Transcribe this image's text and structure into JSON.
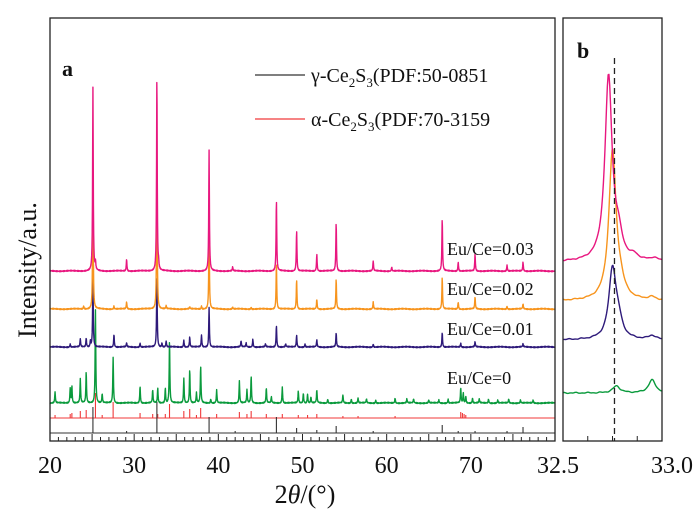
{
  "chart_data": [
    {
      "panel": "a",
      "type": "line",
      "ylabel": "Intensity/a.u.",
      "xlabel_prefix": "2",
      "xlabel_var": "θ",
      "xlabel_suffix": "/(°)",
      "xlim": [
        20,
        80
      ],
      "xticks": [
        "20",
        "30",
        "40",
        "50",
        "60",
        "70"
      ],
      "xtick_values": [
        20,
        30,
        40,
        50,
        60,
        70
      ],
      "legend": [
        {
          "symbol": "γ",
          "text": "-Ce",
          "sub1": "2",
          "mid": "S",
          "sub2": "3",
          "tail": "(PDF:50-0851",
          "color": "#333333"
        },
        {
          "symbol": "α",
          "text": "-Ce",
          "sub1": "2",
          "mid": "S",
          "sub2": "3",
          "tail": "(PDF:70-3159",
          "color": "#f0393a"
        }
      ],
      "legend_placement": "top-right",
      "series": [
        {
          "name": "Eu/Ce=0.03",
          "color": "#e8177f",
          "offset": 170,
          "peaks": [
            [
              25.1,
              183
            ],
            [
              32.7,
              198
            ],
            [
              38.9,
              121
            ],
            [
              46.9,
              72
            ],
            [
              49.3,
              41
            ],
            [
              29.1,
              12
            ],
            [
              41.7,
              4
            ],
            [
              51.7,
              17
            ],
            [
              54.0,
              49
            ],
            [
              58.4,
              10
            ],
            [
              60.6,
              4
            ],
            [
              66.6,
              53
            ],
            [
              68.5,
              9
            ],
            [
              70.5,
              17
            ],
            [
              74.3,
              6
            ],
            [
              76.2,
              9
            ],
            [
              25.4,
              8
            ],
            [
              32.9,
              6
            ]
          ]
        },
        {
          "name": "Eu/Ce=0.02",
          "color": "#f7941d",
          "offset": 132,
          "peaks": [
            [
              25.1,
              132
            ],
            [
              32.7,
              155
            ],
            [
              38.9,
              83
            ],
            [
              46.9,
              46
            ],
            [
              49.3,
              30
            ],
            [
              29.1,
              7
            ],
            [
              51.7,
              10
            ],
            [
              54.0,
              30
            ],
            [
              58.4,
              7
            ],
            [
              66.6,
              32
            ],
            [
              68.5,
              7
            ],
            [
              70.5,
              12
            ],
            [
              74.3,
              3
            ],
            [
              76.2,
              5
            ],
            [
              24.0,
              3
            ],
            [
              27.6,
              3
            ],
            [
              33.8,
              3
            ],
            [
              36.6,
              2
            ],
            [
              38.0,
              3
            ],
            [
              41.7,
              2
            ],
            [
              43.9,
              2
            ]
          ]
        },
        {
          "name": "Eu/Ce=0.01",
          "color": "#2e1a7a",
          "offset": 94,
          "peaks": [
            [
              25.1,
              72
            ],
            [
              32.7,
              72
            ],
            [
              38.9,
              40
            ],
            [
              46.9,
              22
            ],
            [
              49.3,
              12
            ],
            [
              54.0,
              14
            ],
            [
              66.6,
              15
            ],
            [
              51.7,
              7
            ],
            [
              70.5,
              5
            ],
            [
              68.8,
              4
            ],
            [
              27.6,
              13
            ],
            [
              36.6,
              10
            ],
            [
              38.0,
              12
            ],
            [
              35.9,
              7
            ],
            [
              23.6,
              8
            ],
            [
              24.3,
              9
            ],
            [
              24.8,
              6
            ],
            [
              30.7,
              4
            ],
            [
              33.8,
              6
            ],
            [
              33.3,
              4
            ],
            [
              42.7,
              6
            ],
            [
              44.1,
              8
            ],
            [
              29.1,
              4
            ],
            [
              43.3,
              4
            ],
            [
              45.6,
              3
            ],
            [
              48.0,
              3
            ],
            [
              50.3,
              3
            ],
            [
              58.4,
              3
            ],
            [
              76.2,
              3
            ],
            [
              22.4,
              3
            ]
          ]
        },
        {
          "name": "Eu/Ce=0",
          "color": "#0a9a3c",
          "offset": 38,
          "peaks": [
            [
              20.6,
              11
            ],
            [
              22.4,
              15
            ],
            [
              22.6,
              17
            ],
            [
              23.6,
              24
            ],
            [
              24.3,
              31
            ],
            [
              25.4,
              93
            ],
            [
              26.2,
              9
            ],
            [
              27.5,
              46
            ],
            [
              30.7,
              17
            ],
            [
              32.2,
              13
            ],
            [
              32.8,
              15
            ],
            [
              33.7,
              15
            ],
            [
              34.2,
              63
            ],
            [
              35.9,
              25
            ],
            [
              36.6,
              34
            ],
            [
              37.4,
              10
            ],
            [
              37.9,
              37
            ],
            [
              39.1,
              4
            ],
            [
              39.8,
              13
            ],
            [
              42.5,
              22
            ],
            [
              43.4,
              13
            ],
            [
              43.9,
              27
            ],
            [
              45.7,
              15
            ],
            [
              46.3,
              6
            ],
            [
              47.6,
              16
            ],
            [
              49.5,
              12
            ],
            [
              50.1,
              10
            ],
            [
              50.6,
              9
            ],
            [
              51.0,
              6
            ],
            [
              51.7,
              13
            ],
            [
              53.0,
              4
            ],
            [
              54.8,
              8
            ],
            [
              55.8,
              4
            ],
            [
              56.6,
              5
            ],
            [
              57.6,
              4
            ],
            [
              58.7,
              3
            ],
            [
              61.0,
              5
            ],
            [
              62.4,
              4
            ],
            [
              63.2,
              4
            ],
            [
              65.0,
              3
            ],
            [
              66.2,
              3
            ],
            [
              67.3,
              4
            ],
            [
              68.8,
              15
            ],
            [
              69.1,
              10
            ],
            [
              69.4,
              7
            ],
            [
              70.2,
              5
            ],
            [
              71.0,
              4
            ],
            [
              72.1,
              4
            ],
            [
              73.2,
              3
            ],
            [
              74.5,
              4
            ],
            [
              75.9,
              3
            ],
            [
              77.4,
              3
            ]
          ]
        }
      ],
      "references": [
        {
          "name": "α-Ce2S3 PDF:70-3159",
          "color": "#f0393a",
          "offset": 23,
          "lines": [
            [
              20.6,
              3
            ],
            [
              22.4,
              4
            ],
            [
              22.6,
              5
            ],
            [
              23.6,
              7
            ],
            [
              24.3,
              8
            ],
            [
              25.4,
              25
            ],
            [
              26.2,
              3
            ],
            [
              27.5,
              16
            ],
            [
              30.7,
              5
            ],
            [
              32.2,
              4
            ],
            [
              32.8,
              4
            ],
            [
              33.7,
              4
            ],
            [
              34.2,
              14
            ],
            [
              35.9,
              7
            ],
            [
              36.6,
              9
            ],
            [
              37.4,
              3
            ],
            [
              37.9,
              10
            ],
            [
              39.8,
              4
            ],
            [
              42.5,
              6
            ],
            [
              43.4,
              4
            ],
            [
              43.9,
              7
            ],
            [
              45.7,
              4
            ],
            [
              47.6,
              4
            ],
            [
              49.5,
              3
            ],
            [
              50.6,
              3
            ],
            [
              51.7,
              4
            ],
            [
              54.8,
              2
            ],
            [
              56.6,
              2
            ],
            [
              61.0,
              2
            ],
            [
              68.8,
              6
            ],
            [
              69.0,
              5
            ],
            [
              69.2,
              4
            ],
            [
              69.4,
              3
            ]
          ]
        },
        {
          "name": "γ-Ce2S3 PDF:50-0851",
          "color": "#333333",
          "offset": 8,
          "lines": [
            [
              25.1,
              26
            ],
            [
              32.7,
              31
            ],
            [
              38.9,
              16
            ],
            [
              46.9,
              16
            ],
            [
              49.3,
              5
            ],
            [
              29.1,
              2
            ],
            [
              42.0,
              2
            ],
            [
              51.7,
              3
            ],
            [
              54.0,
              7
            ],
            [
              58.4,
              2
            ],
            [
              66.6,
              8
            ],
            [
              68.5,
              2
            ],
            [
              70.5,
              2
            ],
            [
              74.3,
              2
            ],
            [
              76.2,
              6
            ]
          ]
        }
      ]
    },
    {
      "panel": "b",
      "type": "line",
      "xlim": [
        32.5,
        33.0
      ],
      "xticks": [
        "32.5",
        "33.0"
      ],
      "xtick_values": [
        32.5,
        33.0
      ],
      "reference_dashed_x": 32.76,
      "series": [
        {
          "name": "Eu/Ce=0.03",
          "color": "#e8177f",
          "offset": 179,
          "peaks": [
            [
              32.73,
              185
            ],
            [
              32.78,
              20
            ],
            [
              32.86,
              4
            ],
            [
              32.96,
              3
            ]
          ]
        },
        {
          "name": "Eu/Ce=0.02",
          "color": "#f7941d",
          "offset": 140,
          "peaks": [
            [
              32.75,
              150
            ],
            [
              32.79,
              10
            ],
            [
              32.95,
              3
            ]
          ]
        },
        {
          "name": "Eu/Ce=0.01",
          "color": "#2e1a7a",
          "offset": 101,
          "peaks": [
            [
              32.75,
              70
            ],
            [
              32.78,
              15
            ],
            [
              32.95,
              4
            ]
          ]
        },
        {
          "name": "Eu/Ce=0",
          "color": "#0a9a3c",
          "offset": 48,
          "peaks": [
            [
              32.77,
              7
            ],
            [
              32.95,
              13
            ]
          ]
        }
      ]
    }
  ],
  "labels": {
    "panel_a": "a",
    "panel_b": "b"
  }
}
